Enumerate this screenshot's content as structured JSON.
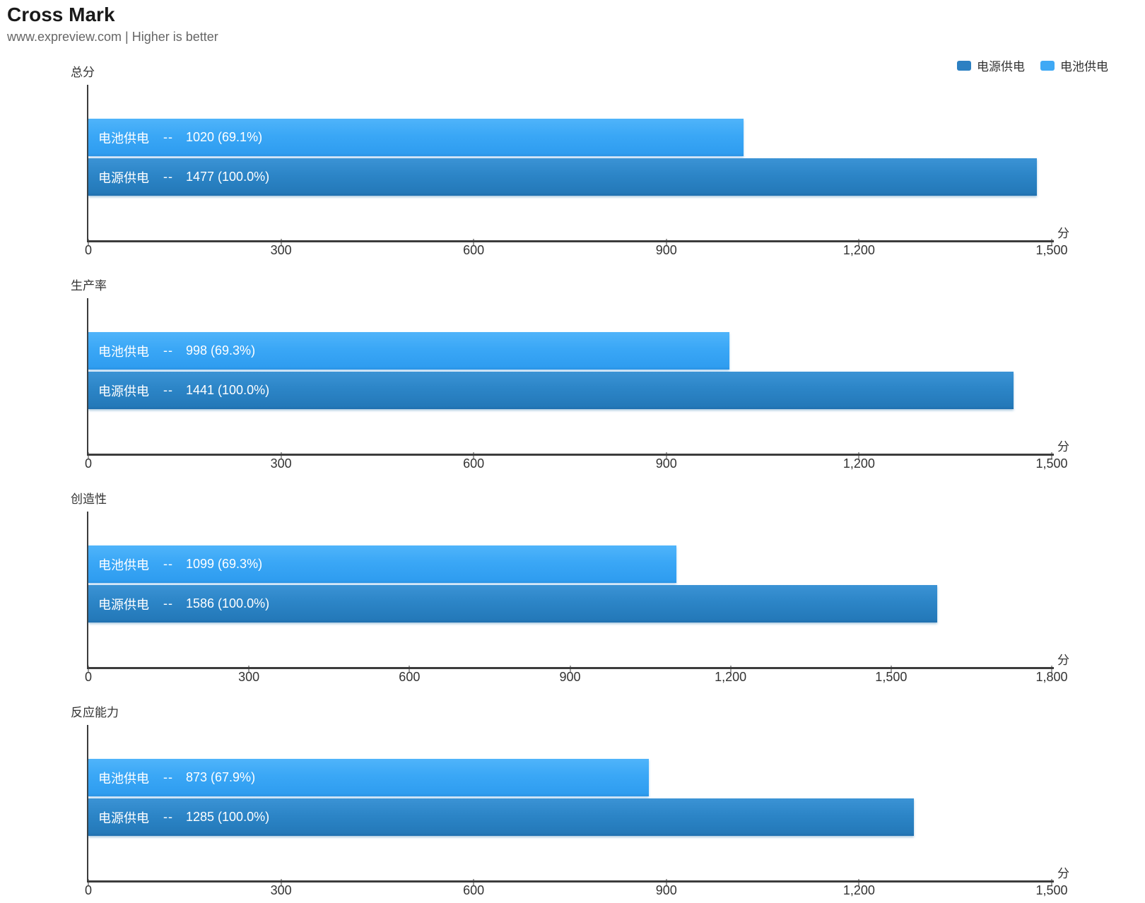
{
  "header": {
    "title": "Cross Mark",
    "subtitle": "www.expreview.com | Higher is better"
  },
  "legend": [
    {
      "label": "电源供电",
      "color": "#2c80c2"
    },
    {
      "label": "电池供电",
      "color": "#3fa9f5"
    }
  ],
  "colors": {
    "ac_power": "#2c80c2",
    "battery_power": "#3fa9f5",
    "axis": "#3c3c3c",
    "bar_label_text": "#ffffff"
  },
  "separator": "--",
  "unit_label": "分",
  "chart_data": [
    {
      "type": "bar",
      "orientation": "horizontal",
      "title": "总分",
      "xlabel": "分",
      "xlim": [
        0,
        1500
      ],
      "ticks": [
        "0",
        "300",
        "600",
        "900",
        "1,200",
        "1,500"
      ],
      "grid": false,
      "series": [
        {
          "name": "电池供电",
          "value": 1020,
          "percent": 69.1,
          "value_text": "1020 (69.1%)"
        },
        {
          "name": "电源供电",
          "value": 1477,
          "percent": 100.0,
          "value_text": "1477 (100.0%)"
        }
      ]
    },
    {
      "type": "bar",
      "orientation": "horizontal",
      "title": "生产率",
      "xlabel": "分",
      "xlim": [
        0,
        1500
      ],
      "ticks": [
        "0",
        "300",
        "600",
        "900",
        "1,200",
        "1,500"
      ],
      "grid": false,
      "series": [
        {
          "name": "电池供电",
          "value": 998,
          "percent": 69.3,
          "value_text": "998 (69.3%)"
        },
        {
          "name": "电源供电",
          "value": 1441,
          "percent": 100.0,
          "value_text": "1441 (100.0%)"
        }
      ]
    },
    {
      "type": "bar",
      "orientation": "horizontal",
      "title": "创造性",
      "xlabel": "分",
      "xlim": [
        0,
        1800
      ],
      "ticks": [
        "0",
        "300",
        "600",
        "900",
        "1,200",
        "1,500",
        "1,800"
      ],
      "grid": false,
      "series": [
        {
          "name": "电池供电",
          "value": 1099,
          "percent": 69.3,
          "value_text": "1099 (69.3%)"
        },
        {
          "name": "电源供电",
          "value": 1586,
          "percent": 100.0,
          "value_text": "1586 (100.0%)"
        }
      ]
    },
    {
      "type": "bar",
      "orientation": "horizontal",
      "title": "反应能力",
      "xlabel": "分",
      "xlim": [
        0,
        1500
      ],
      "ticks": [
        "0",
        "300",
        "600",
        "900",
        "1,200",
        "1,500"
      ],
      "grid": false,
      "series": [
        {
          "name": "电池供电",
          "value": 873,
          "percent": 67.9,
          "value_text": "873 (67.9%)"
        },
        {
          "name": "电源供电",
          "value": 1285,
          "percent": 100.0,
          "value_text": "1285 (100.0%)"
        }
      ]
    }
  ]
}
